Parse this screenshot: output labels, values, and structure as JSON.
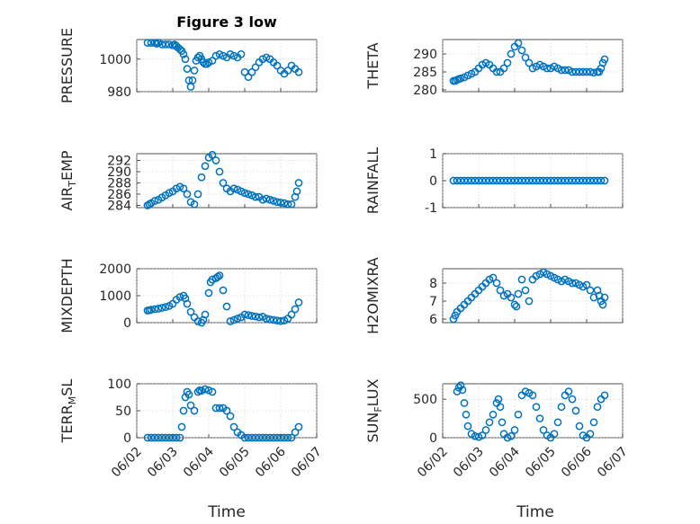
{
  "figure": {
    "title": "Figure 3 low",
    "marker_color": "#0072bd",
    "x_tick_labels": [
      "06/02",
      "06/03",
      "06/04",
      "06/05",
      "06/06",
      "06/07"
    ],
    "x_label": "Time"
  },
  "chart_data": [
    {
      "type": "scatter",
      "ylabel": "PRESSURE",
      "xlim": [
        0,
        5
      ],
      "ylim": [
        980,
        1012
      ],
      "yticks": [
        "980",
        "1000"
      ],
      "ytick_values": [
        980,
        1000
      ],
      "grid": true,
      "x": [
        0.3,
        0.4,
        0.5,
        0.55,
        0.6,
        0.7,
        0.8,
        0.9,
        1.0,
        1.05,
        1.1,
        1.15,
        1.2,
        1.25,
        1.3,
        1.35,
        1.4,
        1.45,
        1.5,
        1.55,
        1.6,
        1.65,
        1.7,
        1.75,
        1.8,
        1.85,
        1.9,
        1.95,
        2.0,
        2.1,
        2.2,
        2.3,
        2.4,
        2.5,
        2.6,
        2.7,
        2.8,
        2.9,
        3.0,
        3.1,
        3.2,
        3.3,
        3.4,
        3.5,
        3.6,
        3.7,
        3.8,
        3.9,
        4.0,
        4.1,
        4.2,
        4.3,
        4.4,
        4.5
      ],
      "y": [
        1010,
        1010,
        1010,
        1009.5,
        1010,
        1009,
        1009,
        1009,
        1008.5,
        1009,
        1008,
        1007,
        1006,
        1005,
        1003,
        1000,
        994,
        987,
        983,
        987,
        993,
        999,
        1001,
        1002,
        1000,
        998,
        997,
        997,
        998,
        999,
        1002,
        1003,
        1002,
        1001,
        1003,
        1002,
        1001,
        1003,
        992,
        989,
        992,
        995,
        998,
        1000,
        1001,
        1000,
        998,
        996,
        993,
        991,
        993,
        996,
        994,
        992
      ]
    },
    {
      "type": "scatter",
      "ylabel": "THETA",
      "xlim": [
        0,
        5
      ],
      "ylim": [
        279.5,
        294
      ],
      "yticks": [
        "280",
        "285",
        "290"
      ],
      "ytick_values": [
        280,
        285,
        290
      ],
      "grid": true,
      "x": [
        0.3,
        0.35,
        0.4,
        0.45,
        0.5,
        0.6,
        0.7,
        0.8,
        0.9,
        1.0,
        1.1,
        1.2,
        1.3,
        1.4,
        1.5,
        1.6,
        1.7,
        1.8,
        1.9,
        2.0,
        2.1,
        2.2,
        2.3,
        2.4,
        2.5,
        2.6,
        2.7,
        2.8,
        2.9,
        3.0,
        3.1,
        3.2,
        3.3,
        3.4,
        3.5,
        3.6,
        3.7,
        3.8,
        3.9,
        4.0,
        4.1,
        4.2,
        4.3,
        4.35,
        4.4,
        4.45,
        4.5
      ],
      "y": [
        282.5,
        282.5,
        282.8,
        283,
        283.2,
        283.5,
        284,
        284.5,
        285,
        286,
        287,
        287.5,
        287,
        286,
        285,
        285,
        286,
        287.5,
        290,
        292,
        293,
        291,
        289,
        287.5,
        286,
        286.5,
        287,
        286.5,
        286,
        286,
        286.5,
        286,
        285.5,
        285.5,
        285.5,
        285,
        285,
        285,
        285,
        285,
        285,
        284.8,
        285,
        285,
        286,
        287.5,
        288.5
      ]
    },
    {
      "type": "scatter",
      "ylabel": "AIR_TEMP",
      "xlim": [
        0,
        5
      ],
      "ylim": [
        283.6,
        293.2
      ],
      "yticks": [
        "284",
        "286",
        "288",
        "290",
        "292"
      ],
      "ytick_values": [
        284,
        286,
        288,
        290,
        292
      ],
      "grid": true,
      "x": [
        0.3,
        0.35,
        0.4,
        0.5,
        0.6,
        0.7,
        0.8,
        0.9,
        1.0,
        1.1,
        1.2,
        1.3,
        1.4,
        1.5,
        1.6,
        1.7,
        1.8,
        1.9,
        2.0,
        2.1,
        2.2,
        2.3,
        2.4,
        2.5,
        2.6,
        2.7,
        2.8,
        2.9,
        3.0,
        3.1,
        3.2,
        3.3,
        3.4,
        3.5,
        3.6,
        3.7,
        3.8,
        3.9,
        4.0,
        4.1,
        4.2,
        4.3,
        4.4,
        4.45,
        4.5
      ],
      "y": [
        284,
        284.2,
        284.4,
        284.8,
        285,
        285.4,
        285.8,
        286.2,
        286.5,
        287,
        287.3,
        287,
        286,
        284.6,
        284.2,
        286,
        289,
        291,
        292.5,
        293,
        292,
        290,
        288,
        287,
        286.5,
        287,
        286.8,
        286.5,
        286.2,
        286,
        285.8,
        285.5,
        285.5,
        285,
        285.2,
        285,
        284.8,
        284.6,
        284.5,
        284.4,
        284.2,
        284.2,
        285.5,
        286.5,
        288
      ]
    },
    {
      "type": "scatter",
      "ylabel": "RAINFALL",
      "xlim": [
        0,
        5
      ],
      "ylim": [
        -1,
        1
      ],
      "yticks": [
        "-1",
        "0",
        "1"
      ],
      "ytick_values": [
        -1,
        0,
        1
      ],
      "grid": true,
      "x": [
        0.3,
        0.4,
        0.5,
        0.6,
        0.7,
        0.8,
        0.9,
        1.0,
        1.1,
        1.2,
        1.3,
        1.4,
        1.5,
        1.6,
        1.7,
        1.8,
        1.9,
        2.0,
        2.1,
        2.2,
        2.3,
        2.4,
        2.5,
        2.6,
        2.7,
        2.8,
        2.9,
        3.0,
        3.1,
        3.2,
        3.3,
        3.4,
        3.5,
        3.6,
        3.7,
        3.8,
        3.9,
        4.0,
        4.1,
        4.2,
        4.3,
        4.4,
        4.5
      ],
      "y": [
        0,
        0,
        0,
        0,
        0,
        0,
        0,
        0,
        0,
        0,
        0,
        0,
        0,
        0,
        0,
        0,
        0,
        0,
        0,
        0,
        0,
        0,
        0,
        0,
        0,
        0,
        0,
        0,
        0,
        0,
        0,
        0,
        0,
        0,
        0,
        0,
        0,
        0,
        0,
        0,
        0,
        0,
        0
      ]
    },
    {
      "type": "scatter",
      "ylabel": "MIXDEPTH",
      "xlim": [
        0,
        5
      ],
      "ylim": [
        0,
        2000
      ],
      "yticks": [
        "0",
        "1000",
        "2000"
      ],
      "ytick_values": [
        0,
        1000,
        2000
      ],
      "grid": true,
      "x": [
        0.3,
        0.35,
        0.4,
        0.5,
        0.6,
        0.7,
        0.8,
        0.9,
        1.0,
        1.1,
        1.2,
        1.3,
        1.35,
        1.4,
        1.5,
        1.6,
        1.7,
        1.8,
        1.85,
        1.9,
        2.0,
        2.05,
        2.1,
        2.2,
        2.25,
        2.3,
        2.4,
        2.5,
        2.6,
        2.7,
        2.8,
        2.9,
        3.0,
        3.1,
        3.2,
        3.3,
        3.4,
        3.5,
        3.6,
        3.7,
        3.8,
        3.9,
        4.0,
        4.1,
        4.2,
        4.3,
        4.4,
        4.5
      ],
      "y": [
        450,
        460,
        480,
        500,
        520,
        550,
        580,
        620,
        700,
        850,
        950,
        1000,
        900,
        700,
        400,
        200,
        50,
        0,
        100,
        300,
        1100,
        1500,
        1600,
        1650,
        1700,
        1750,
        1200,
        600,
        50,
        100,
        150,
        200,
        300,
        280,
        250,
        230,
        200,
        220,
        150,
        120,
        100,
        80,
        60,
        80,
        150,
        300,
        500,
        750
      ]
    },
    {
      "type": "scatter",
      "ylabel": "H2OMIXRA",
      "xlim": [
        0,
        5
      ],
      "ylim": [
        5.8,
        8.8
      ],
      "yticks": [
        "6",
        "7",
        "8"
      ],
      "ytick_values": [
        6,
        7,
        8
      ],
      "grid": true,
      "x": [
        0.3,
        0.35,
        0.4,
        0.5,
        0.6,
        0.7,
        0.8,
        0.9,
        1.0,
        1.1,
        1.2,
        1.3,
        1.4,
        1.5,
        1.6,
        1.7,
        1.8,
        1.9,
        2.0,
        2.05,
        2.1,
        2.2,
        2.3,
        2.4,
        2.5,
        2.6,
        2.7,
        2.8,
        2.9,
        3.0,
        3.1,
        3.2,
        3.3,
        3.4,
        3.5,
        3.6,
        3.7,
        3.8,
        3.9,
        4.0,
        4.1,
        4.2,
        4.3,
        4.35,
        4.4,
        4.45,
        4.5
      ],
      "y": [
        6,
        6.2,
        6.4,
        6.6,
        6.8,
        7,
        7.2,
        7.4,
        7.6,
        7.8,
        8,
        8.2,
        8.3,
        8,
        7.6,
        7.3,
        7.4,
        7.2,
        6.8,
        6.7,
        7.4,
        8.2,
        7.6,
        7,
        8.2,
        8.4,
        8.5,
        8.6,
        8.5,
        8.4,
        8.3,
        8.2,
        8.1,
        8.2,
        8.1,
        8,
        8,
        7.9,
        7.8,
        7.9,
        7.6,
        7.2,
        7.6,
        7.3,
        7.0,
        6.8,
        7.2
      ]
    },
    {
      "type": "scatter",
      "ylabel": "TERR_MSL",
      "xlim": [
        0,
        5
      ],
      "ylim": [
        0,
        100
      ],
      "yticks": [
        "0",
        "50",
        "100"
      ],
      "ytick_values": [
        0,
        50,
        100
      ],
      "grid": true,
      "x": [
        0.3,
        0.4,
        0.5,
        0.6,
        0.7,
        0.8,
        0.9,
        1.0,
        1.1,
        1.2,
        1.25,
        1.3,
        1.35,
        1.4,
        1.45,
        1.5,
        1.6,
        1.7,
        1.75,
        1.8,
        1.9,
        2.0,
        2.1,
        2.2,
        2.3,
        2.4,
        2.5,
        2.6,
        2.7,
        2.8,
        2.9,
        3.0,
        3.1,
        3.2,
        3.3,
        3.4,
        3.5,
        3.6,
        3.7,
        3.8,
        3.9,
        4.0,
        4.1,
        4.2,
        4.3,
        4.4,
        4.5
      ],
      "y": [
        0,
        0,
        0,
        0,
        0,
        0,
        0,
        0,
        0,
        0,
        20,
        50,
        75,
        85,
        80,
        60,
        50,
        85,
        88,
        87,
        90,
        88,
        85,
        55,
        55,
        55,
        50,
        40,
        20,
        10,
        5,
        0,
        0,
        0,
        0,
        0,
        0,
        0,
        0,
        0,
        0,
        0,
        0,
        0,
        0,
        10,
        20
      ]
    },
    {
      "type": "scatter",
      "ylabel": "SUN_FLUX",
      "xlim": [
        0,
        5
      ],
      "ylim": [
        0,
        700
      ],
      "yticks": [
        "0",
        "500"
      ],
      "ytick_values": [
        0,
        500
      ],
      "grid": true,
      "x": [
        0.4,
        0.45,
        0.5,
        0.55,
        0.6,
        0.65,
        0.7,
        0.8,
        0.9,
        1.0,
        1.1,
        1.2,
        1.3,
        1.4,
        1.5,
        1.55,
        1.6,
        1.65,
        1.7,
        1.8,
        1.9,
        2.0,
        2.1,
        2.2,
        2.3,
        2.4,
        2.5,
        2.6,
        2.7,
        2.8,
        2.9,
        3.0,
        3.1,
        3.2,
        3.3,
        3.4,
        3.5,
        3.6,
        3.7,
        3.8,
        3.9,
        4.0,
        4.1,
        4.2,
        4.3,
        4.4,
        4.5
      ],
      "y": [
        600,
        650,
        680,
        620,
        450,
        300,
        150,
        50,
        20,
        10,
        30,
        100,
        200,
        300,
        450,
        500,
        400,
        200,
        50,
        0,
        20,
        100,
        300,
        550,
        600,
        580,
        550,
        400,
        250,
        100,
        30,
        0,
        50,
        200,
        400,
        550,
        600,
        500,
        350,
        150,
        30,
        0,
        50,
        200,
        400,
        500,
        550
      ]
    }
  ]
}
